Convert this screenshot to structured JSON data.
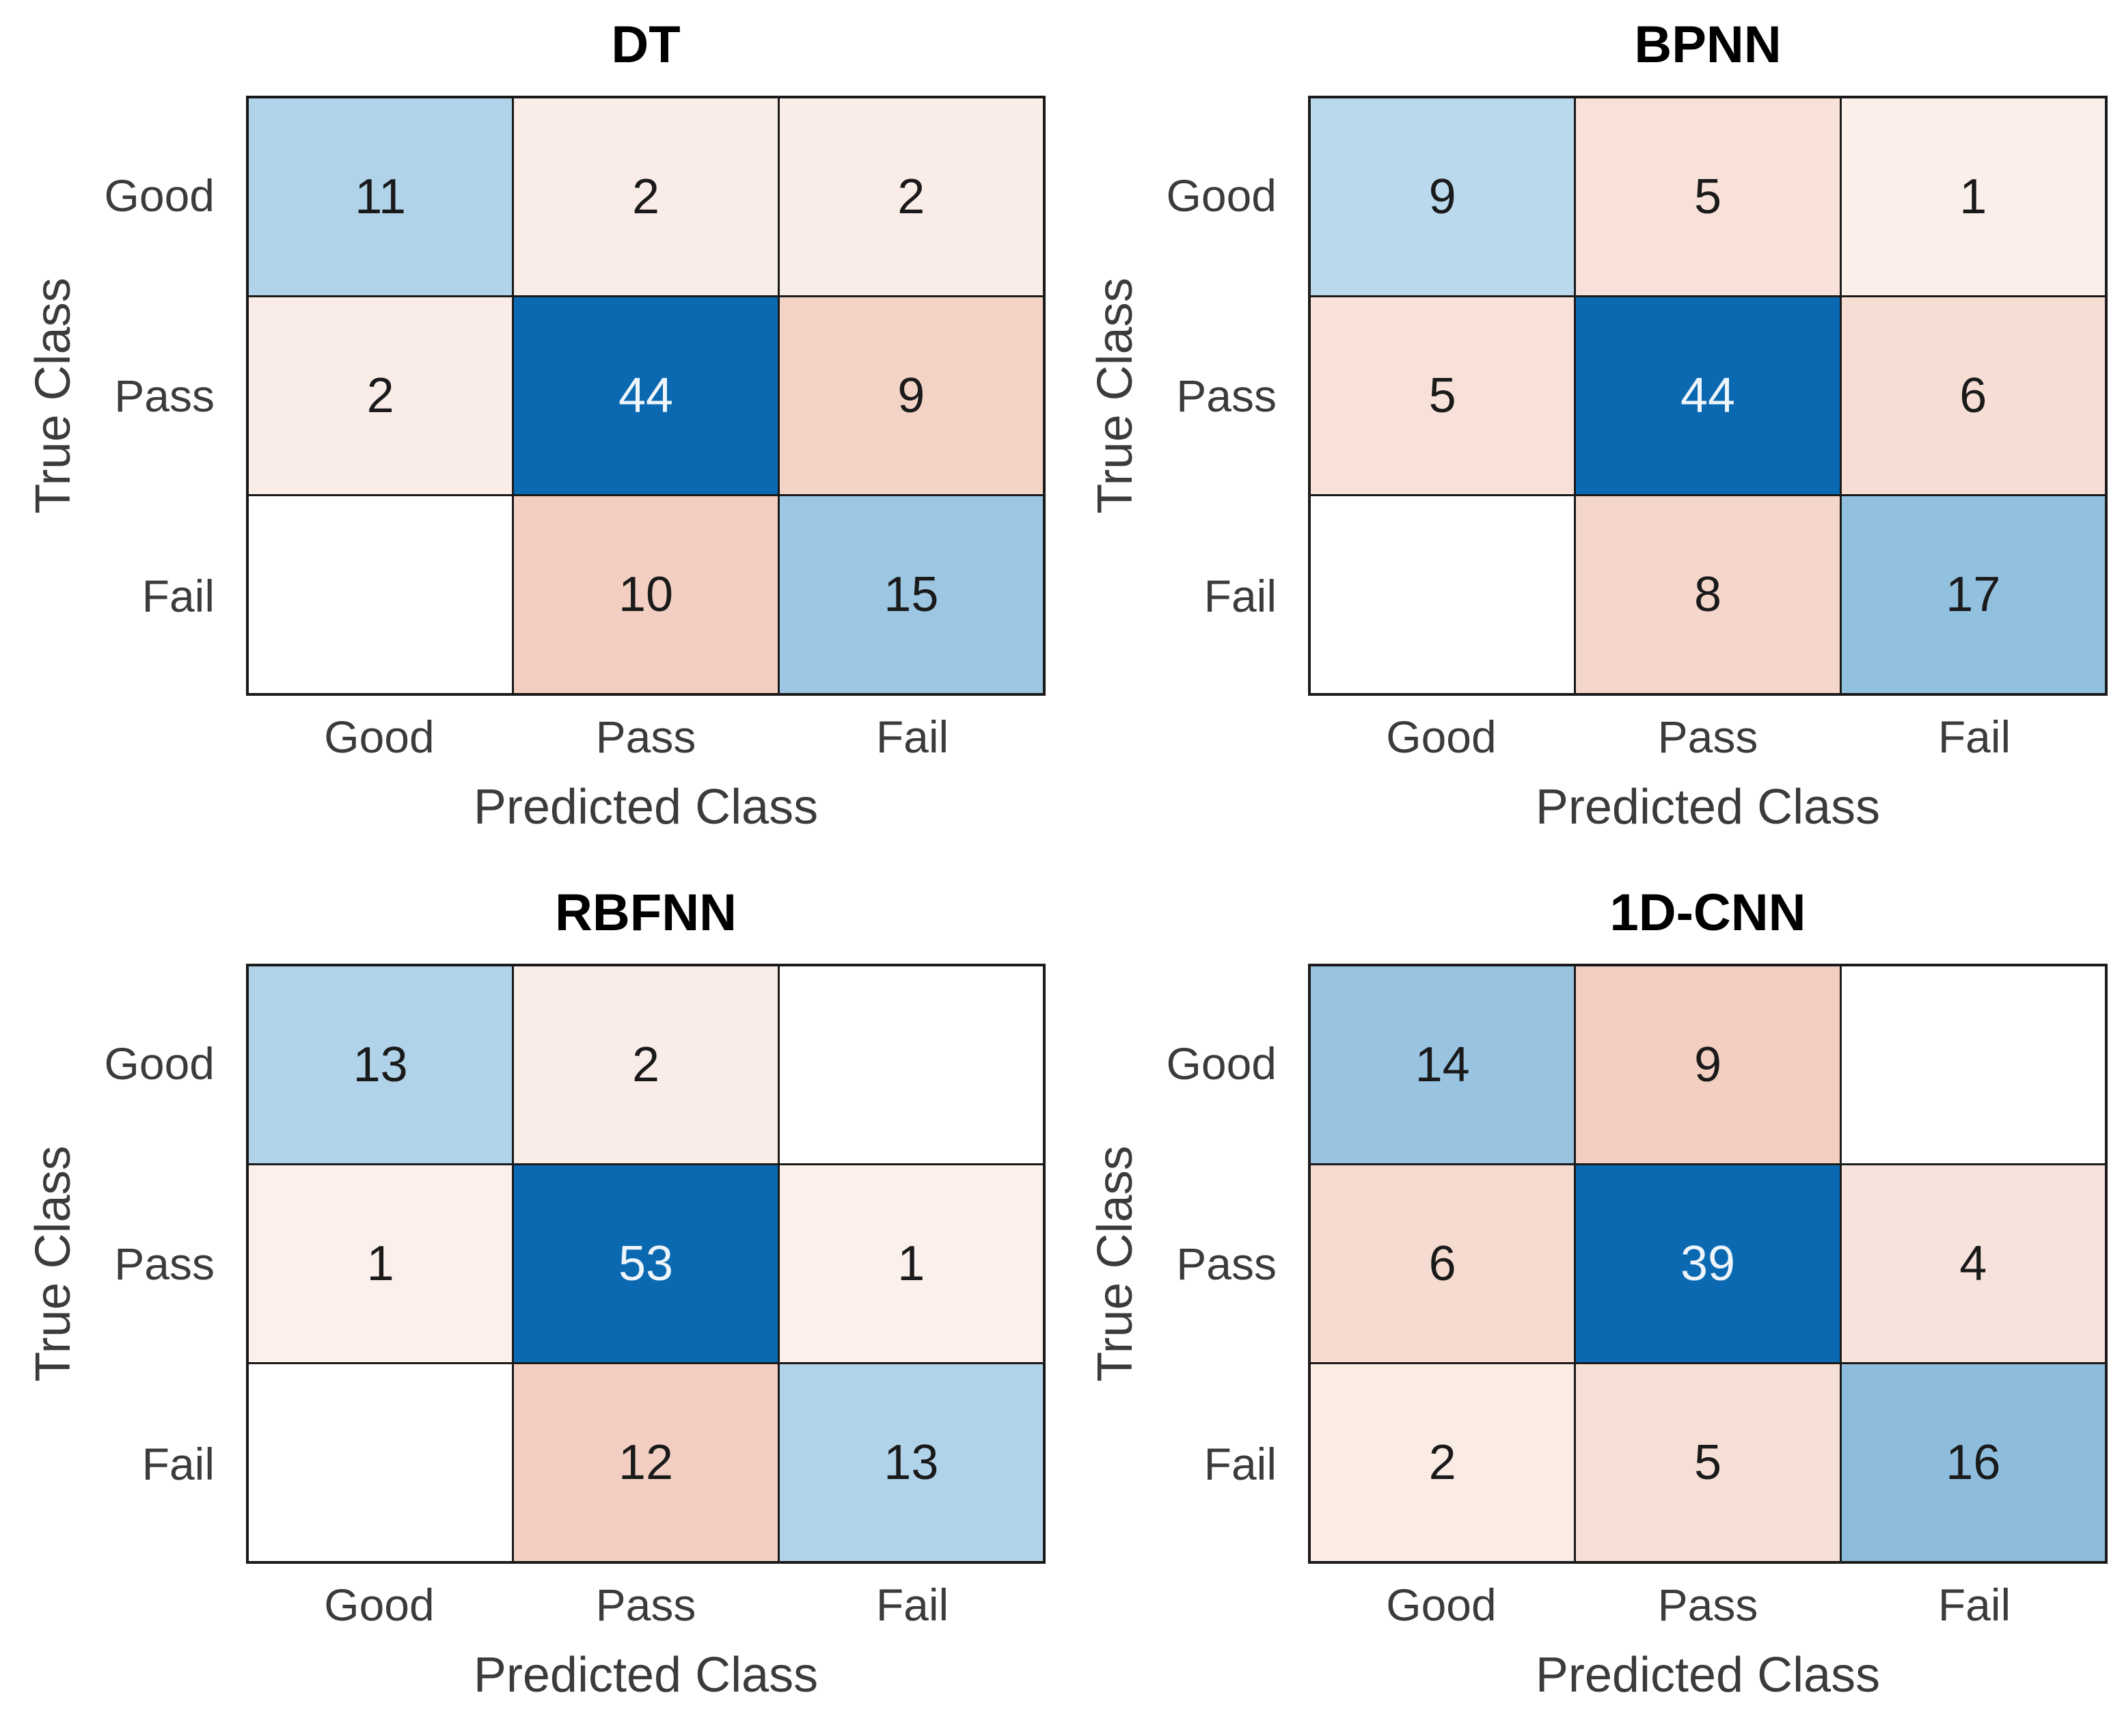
{
  "figure": {
    "x_label": "Predicted Class",
    "y_label": "True Class",
    "classes": [
      "Good",
      "Pass",
      "Fail"
    ]
  },
  "colors": {
    "diagonal_base": "#0b69b1",
    "diagonal_text": "#eef5fb",
    "cell_text": "#1a1a1a",
    "tick_label": "#3b3b3b",
    "axis_label": "#3b3b3b",
    "title": "#000000",
    "grid_line": "#1a1a1a",
    "background": "#ffffff",
    "empty_cell": "#ffffff"
  },
  "chart_data": [
    {
      "type": "heatmap",
      "title": "DT",
      "xlabel": "Predicted Class",
      "ylabel": "True Class",
      "x_categories": [
        "Good",
        "Pass",
        "Fail"
      ],
      "y_categories": [
        "Good",
        "Pass",
        "Fail"
      ],
      "matrix": [
        [
          11,
          2,
          2
        ],
        [
          2,
          44,
          9
        ],
        [
          null,
          10,
          15
        ]
      ],
      "cell_colors": [
        [
          "#b0d3e9",
          "#faece6",
          "#faece6"
        ],
        [
          "#faece6",
          "#0b69b1",
          "#f3d3c6"
        ],
        [
          "#ffffff",
          "#f2cfc2",
          "#9cc6e2"
        ]
      ]
    },
    {
      "type": "heatmap",
      "title": "BPNN",
      "xlabel": "Predicted Class",
      "ylabel": "True Class",
      "x_categories": [
        "Good",
        "Pass",
        "Fail"
      ],
      "y_categories": [
        "Good",
        "Pass",
        "Fail"
      ],
      "matrix": [
        [
          9,
          5,
          1
        ],
        [
          5,
          44,
          6
        ],
        [
          null,
          8,
          17
        ]
      ],
      "cell_colors": [
        [
          "#bad9ed",
          "#f7e1d8",
          "#fbefea"
        ],
        [
          "#f7e1d8",
          "#0b69b1",
          "#f6ded4"
        ],
        [
          "#ffffff",
          "#f4d6cb",
          "#92c0df"
        ]
      ]
    },
    {
      "type": "heatmap",
      "title": "RBFNN",
      "xlabel": "Predicted Class",
      "ylabel": "True Class",
      "x_categories": [
        "Good",
        "Pass",
        "Fail"
      ],
      "y_categories": [
        "Good",
        "Pass",
        "Fail"
      ],
      "matrix": [
        [
          13,
          2,
          null
        ],
        [
          1,
          53,
          1
        ],
        [
          null,
          12,
          13
        ]
      ],
      "cell_colors": [
        [
          "#b1d3ea",
          "#faede7",
          "#ffffff"
        ],
        [
          "#fbf0eb",
          "#0b69b1",
          "#fbf0eb"
        ],
        [
          "#ffffff",
          "#f2cfc2",
          "#b1d3ea"
        ]
      ]
    },
    {
      "type": "heatmap",
      "title": "1D-CNN",
      "xlabel": "Predicted Class",
      "ylabel": "True Class",
      "x_categories": [
        "Good",
        "Pass",
        "Fail"
      ],
      "y_categories": [
        "Good",
        "Pass",
        "Fail"
      ],
      "matrix": [
        [
          14,
          9,
          null
        ],
        [
          6,
          39,
          4
        ],
        [
          2,
          5,
          16
        ]
      ],
      "cell_colors": [
        [
          "#98c3e1",
          "#f2cfc1",
          "#ffffff"
        ],
        [
          "#f5dbd0",
          "#0b69b1",
          "#f7e3db"
        ],
        [
          "#faebe5",
          "#f6dfd5",
          "#8dbcdd"
        ]
      ]
    }
  ]
}
